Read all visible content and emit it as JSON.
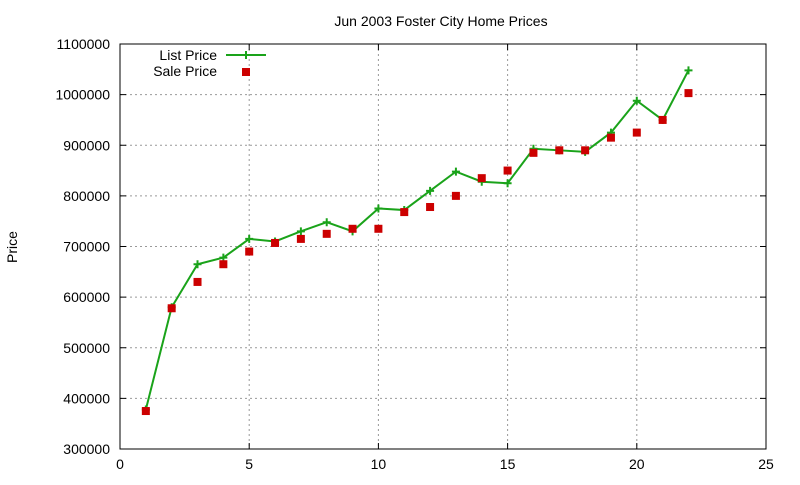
{
  "chart_data": {
    "type": "line",
    "title": "Jun 2003 Foster City Home Prices",
    "xlabel": "",
    "ylabel": "Price",
    "xlim": [
      0,
      25
    ],
    "ylim": [
      300000,
      1100000
    ],
    "xticks": [
      0,
      5,
      10,
      15,
      20,
      25
    ],
    "yticks": [
      300000,
      400000,
      500000,
      600000,
      700000,
      800000,
      900000,
      1000000,
      1100000
    ],
    "x_tick_labels": [
      "0",
      "5",
      "10",
      "15",
      "20",
      "25"
    ],
    "y_tick_labels": [
      "300000",
      "400000",
      "500000",
      "600000",
      "700000",
      "800000",
      "900000",
      "1000000",
      "1100000"
    ],
    "grid": true,
    "legend_position": "top-left",
    "x": [
      1,
      2,
      3,
      4,
      5,
      6,
      7,
      8,
      9,
      10,
      11,
      12,
      13,
      14,
      15,
      16,
      17,
      18,
      19,
      20,
      21,
      22
    ],
    "series": [
      {
        "name": "List Price",
        "style": "line-with-plus-markers",
        "color": "#1aa31a",
        "values": [
          378000,
          580000,
          665000,
          678000,
          715000,
          710000,
          730000,
          748000,
          730000,
          775000,
          772000,
          810000,
          848000,
          828000,
          825000,
          893000,
          890000,
          887000,
          925000,
          988000,
          950000,
          1048000
        ]
      },
      {
        "name": "Sale Price",
        "style": "square-markers",
        "color": "#cc0000",
        "values": [
          375000,
          578000,
          630000,
          665000,
          690000,
          707000,
          715000,
          725000,
          735000,
          735000,
          768000,
          778000,
          800000,
          835000,
          850000,
          885000,
          890000,
          890000,
          915000,
          925000,
          950000,
          1003000
        ]
      }
    ]
  }
}
